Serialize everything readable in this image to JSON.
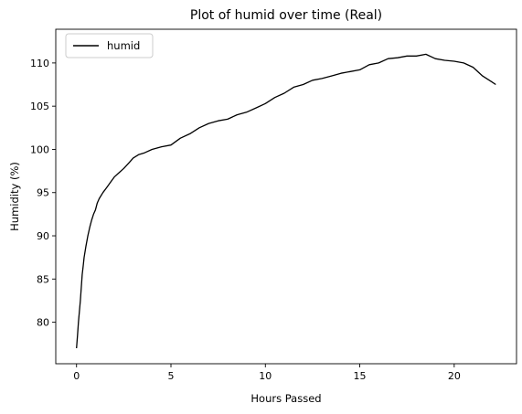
{
  "chart_data": {
    "type": "line",
    "title": "Plot of humid over time (Real)",
    "xlabel": "Hours Passed",
    "ylabel": "Humidity (%)",
    "xlim": [
      -1.1,
      23.3
    ],
    "ylim": [
      75.2,
      113.9
    ],
    "xticks": [
      0,
      5,
      10,
      15,
      20
    ],
    "yticks": [
      80,
      85,
      90,
      95,
      100,
      105,
      110
    ],
    "grid": false,
    "legend": {
      "position": "top-left",
      "entries": [
        "humid"
      ]
    },
    "series": [
      {
        "name": "humid",
        "color": "#000000",
        "x": [
          0.0,
          0.05,
          0.1,
          0.15,
          0.2,
          0.25,
          0.3,
          0.35,
          0.4,
          0.5,
          0.6,
          0.7,
          0.8,
          0.9,
          1.0,
          1.1,
          1.2,
          1.4,
          1.6,
          1.8,
          2.0,
          2.2,
          2.5,
          2.8,
          3.0,
          3.3,
          3.6,
          4.0,
          4.5,
          5.0,
          5.5,
          6.0,
          6.5,
          7.0,
          7.5,
          8.0,
          8.5,
          9.0,
          9.5,
          10.0,
          10.5,
          11.0,
          11.5,
          12.0,
          12.5,
          13.0,
          13.5,
          14.0,
          14.5,
          15.0,
          15.5,
          16.0,
          16.5,
          17.0,
          17.5,
          18.0,
          18.5,
          19.0,
          19.5,
          20.0,
          20.5,
          21.0,
          21.5,
          22.0,
          22.2
        ],
        "y": [
          77.0,
          78.5,
          80.0,
          81.2,
          82.5,
          84.0,
          85.5,
          86.5,
          87.5,
          88.8,
          90.0,
          91.0,
          91.8,
          92.5,
          93.0,
          93.8,
          94.3,
          95.0,
          95.6,
          96.2,
          96.8,
          97.2,
          97.8,
          98.5,
          99.0,
          99.4,
          99.6,
          100.0,
          100.3,
          100.5,
          101.3,
          101.8,
          102.5,
          103.0,
          103.3,
          103.5,
          104.0,
          104.3,
          104.8,
          105.3,
          106.0,
          106.5,
          107.2,
          107.5,
          108.0,
          108.2,
          108.5,
          108.8,
          109.0,
          109.2,
          109.8,
          110.0,
          110.5,
          110.6,
          110.8,
          110.8,
          111.0,
          110.5,
          110.3,
          110.2,
          110.0,
          109.5,
          108.5,
          107.8,
          107.5
        ]
      }
    ]
  }
}
